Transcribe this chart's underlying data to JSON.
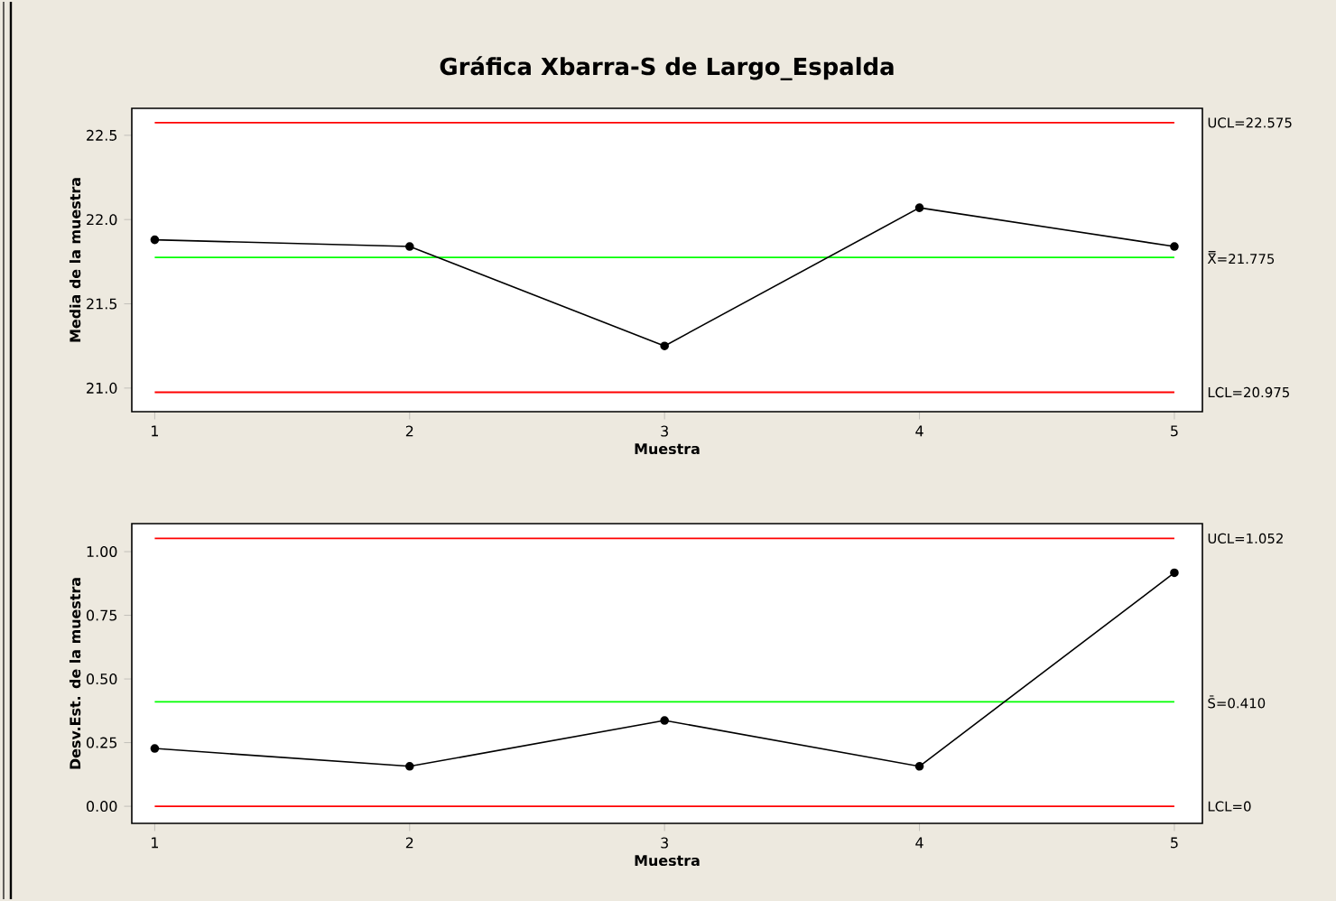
{
  "chart_data": [
    {
      "type": "line",
      "title": "Gráfica Xbarra-S de Largo_Espalda",
      "xlabel": "Muestra",
      "ylabel": "Media de la muestra",
      "x": [
        1,
        2,
        3,
        4,
        5
      ],
      "xlim": [
        0.91,
        5.11
      ],
      "xticks": [
        1,
        2,
        3,
        4,
        5
      ],
      "ylim": [
        20.86,
        22.66
      ],
      "yticks": [
        {
          "value": 21,
          "label": "21.0"
        },
        {
          "value": 21.5,
          "label": "21.5"
        },
        {
          "value": 22,
          "label": "22.0"
        },
        {
          "value": 22.5,
          "label": "22.5"
        }
      ],
      "series": [
        {
          "color": "#000000",
          "values": [
            21.88,
            21.84,
            21.25,
            22.07,
            21.84
          ]
        }
      ],
      "marker": "circle",
      "ref_lines": [
        {
          "axis": "y",
          "value": 22.575,
          "label": "UCL=22.575",
          "color": "#ff0000"
        },
        {
          "axis": "y",
          "value": 21.775,
          "label": "X̿=21.775",
          "color": "#00ff00"
        },
        {
          "axis": "y",
          "value": 20.975,
          "label": "LCL=20.975",
          "color": "#ff0000"
        }
      ]
    },
    {
      "type": "line",
      "xlabel": "Muestra",
      "ylabel": "Desv.Est. de la muestra",
      "x": [
        1,
        2,
        3,
        4,
        5
      ],
      "xlim": [
        0.91,
        5.11
      ],
      "xticks": [
        1,
        2,
        3,
        4,
        5
      ],
      "ylim": [
        -0.067,
        1.11
      ],
      "yticks": [
        {
          "value": 0,
          "label": "0.00"
        },
        {
          "value": 0.25,
          "label": "0.25"
        },
        {
          "value": 0.5,
          "label": "0.50"
        },
        {
          "value": 0.75,
          "label": "0.75"
        },
        {
          "value": 1,
          "label": "1.00"
        }
      ],
      "series": [
        {
          "color": "#000000",
          "values": [
            0.227,
            0.157,
            0.337,
            0.157,
            0.917
          ]
        }
      ],
      "marker": "circle",
      "ref_lines": [
        {
          "axis": "y",
          "value": 1.052,
          "label": "UCL=1.052",
          "color": "#ff0000"
        },
        {
          "axis": "y",
          "value": 0.41,
          "label": "S̄=0.410",
          "color": "#00ff00"
        },
        {
          "axis": "y",
          "value": 0,
          "label": "LCL=0",
          "color": "#ff0000"
        }
      ]
    }
  ]
}
